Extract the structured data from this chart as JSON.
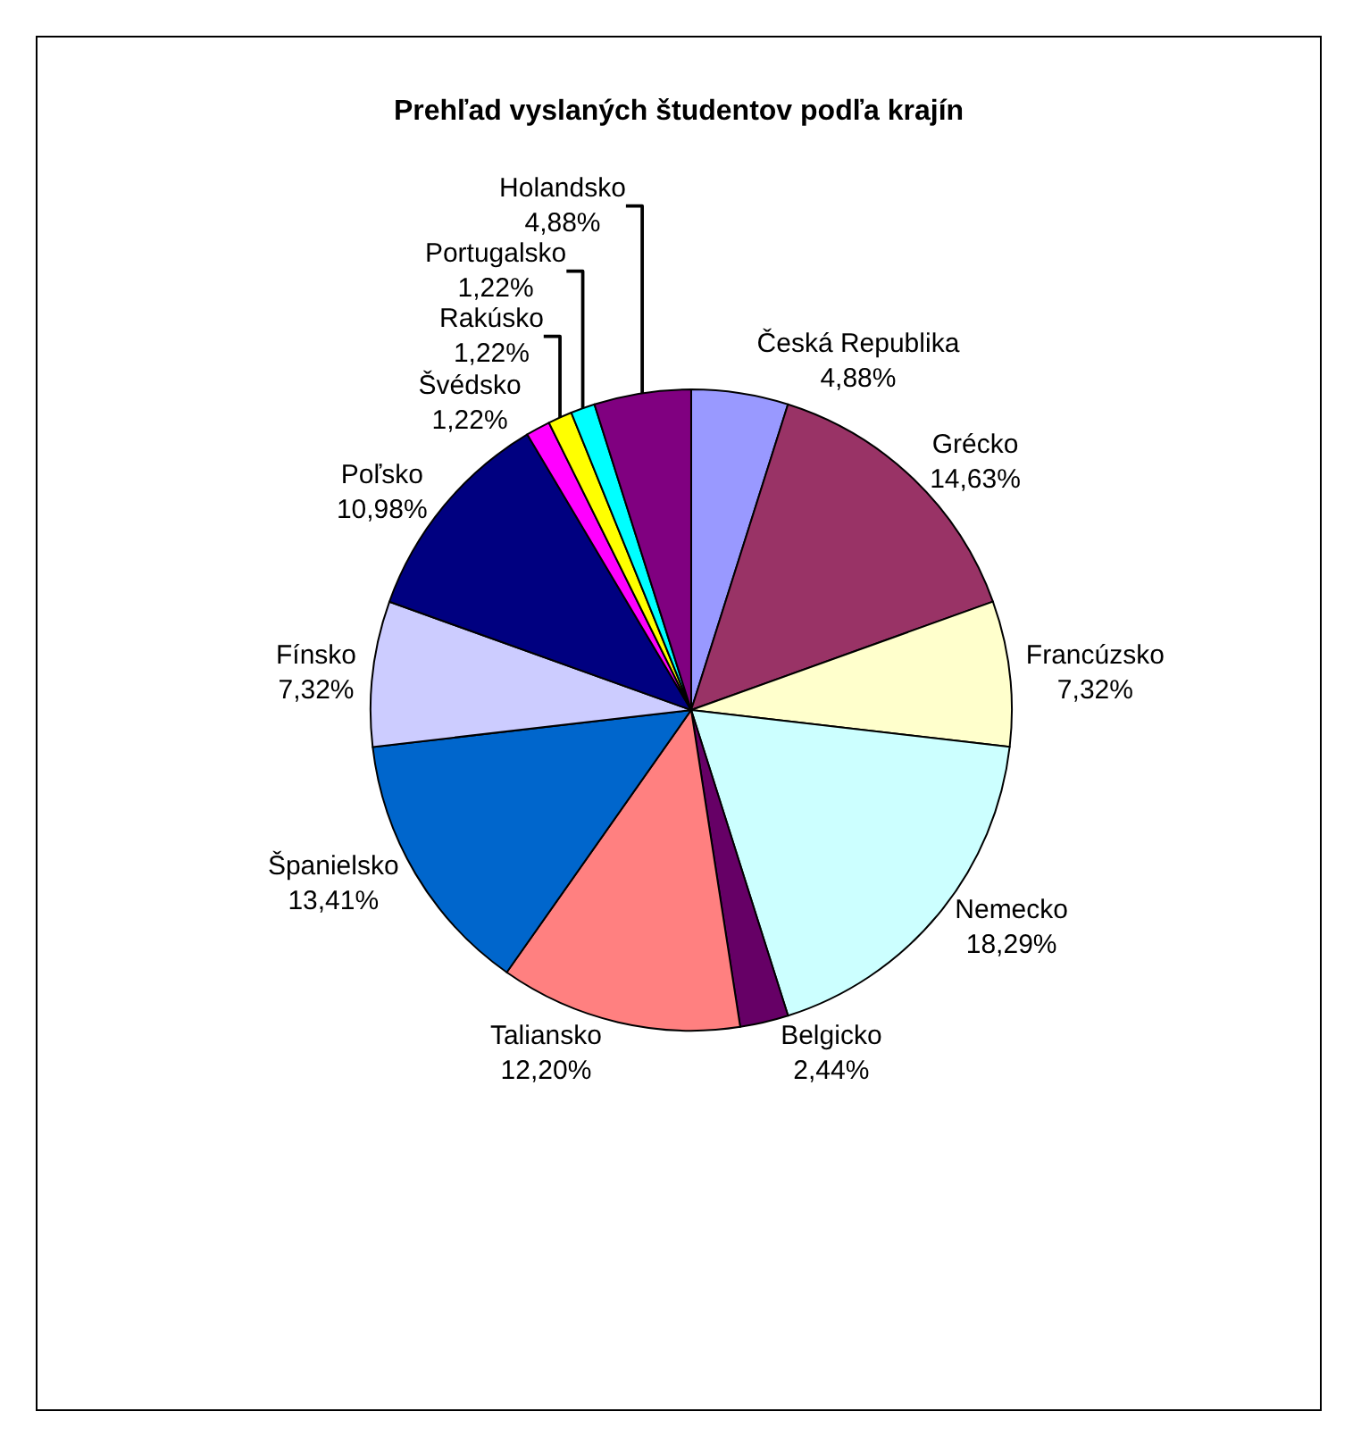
{
  "chart_data": {
    "type": "pie",
    "title": "Prehľad vyslaných študentov podľa krajín",
    "categories": [
      "Česká Republika",
      "Grécko",
      "Francúzsko",
      "Nemecko",
      "Belgicko",
      "Taliansko",
      "Španielsko",
      "Fínsko",
      "Poľsko",
      "Švédsko",
      "Rakúsko",
      "Portugalsko",
      "Holandsko"
    ],
    "values": [
      4.88,
      14.63,
      7.32,
      18.29,
      2.44,
      12.2,
      13.41,
      7.32,
      10.98,
      1.22,
      1.22,
      1.22,
      4.88
    ],
    "value_labels": [
      "4,88%",
      "14,63%",
      "7,32%",
      "18,29%",
      "2,44%",
      "12,20%",
      "13,41%",
      "7,32%",
      "10,98%",
      "1,22%",
      "1,22%",
      "1,22%",
      "4,88%"
    ],
    "colors": [
      "#9999ff",
      "#993366",
      "#ffffcc",
      "#ccffff",
      "#660066",
      "#ff8080",
      "#0066cc",
      "#ccccff",
      "#000080",
      "#ff00ff",
      "#ffff00",
      "#00ffff",
      "#800080"
    ],
    "legend": false
  }
}
